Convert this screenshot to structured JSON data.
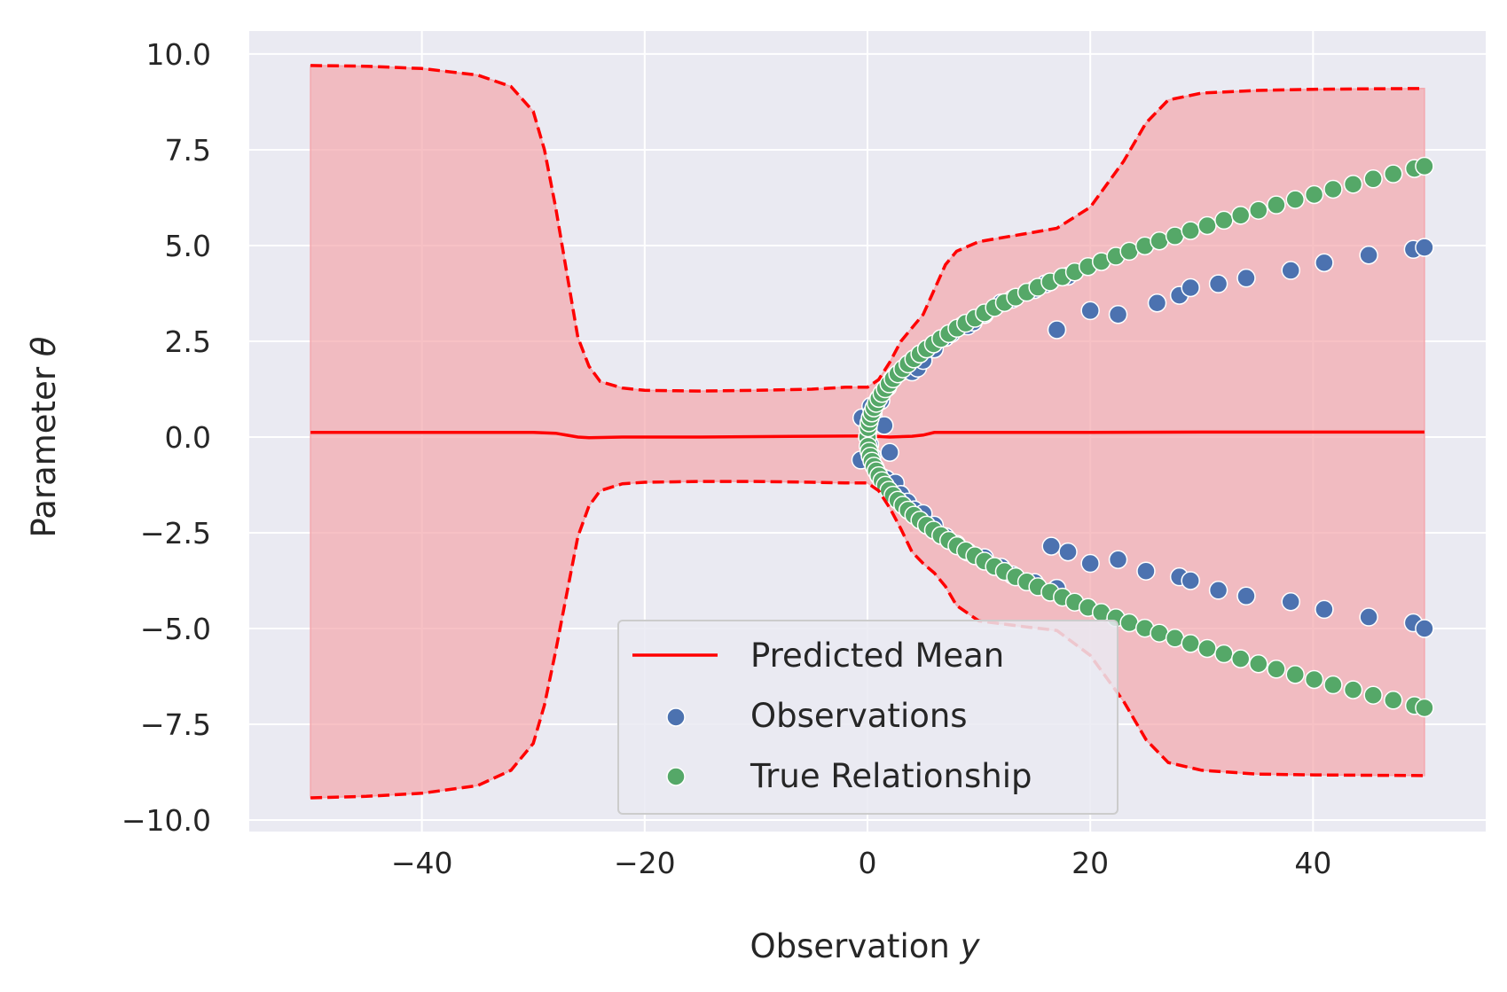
{
  "chart_data": {
    "type": "scatter",
    "title": "",
    "xlabel_main": "Observation ",
    "xlabel_var": "y",
    "ylabel_main": "Parameter ",
    "ylabel_var": "θ",
    "xlim": [
      -55.5,
      55.5
    ],
    "ylim": [
      -10.3,
      10.6
    ],
    "xticks": [
      -40,
      -20,
      0,
      20,
      40
    ],
    "xtick_labels": [
      "−40",
      "−20",
      "0",
      "20",
      "40"
    ],
    "yticks": [
      10,
      7.5,
      5,
      2.5,
      0,
      -2.5,
      -5,
      -7.5,
      -10
    ],
    "ytick_labels": [
      "10.0",
      "7.5",
      "5.0",
      "2.5",
      "0.0",
      "−2.5",
      "−5.0",
      "−7.5",
      "−10.0"
    ],
    "grid": true,
    "legend_position": "lower-center",
    "colors": {
      "background": "#eaeaf2",
      "grid": "#ffffff",
      "mean": "#ff0000",
      "band": "#f4a7ad",
      "observations": "#4c72b0",
      "true_relationship": "#55a868"
    },
    "legend": [
      {
        "label": "Predicted Mean",
        "marker": "line"
      },
      {
        "label": "Observations",
        "marker": "dot-blue"
      },
      {
        "label": "True Relationship",
        "marker": "dot-green"
      }
    ],
    "series": [
      {
        "name": "Predicted Mean",
        "kind": "line",
        "x": [
          -50,
          -40,
          -30,
          -28,
          -26,
          -25,
          -22,
          -15,
          -5,
          0,
          2,
          4,
          5,
          6,
          10,
          20,
          30,
          40,
          50
        ],
        "y": [
          0.12,
          0.12,
          0.12,
          0.1,
          0.0,
          -0.02,
          0.0,
          0.0,
          0.02,
          0.03,
          0.0,
          0.02,
          0.05,
          0.12,
          0.12,
          0.12,
          0.13,
          0.13,
          0.13
        ]
      },
      {
        "name": "Upper Bound",
        "kind": "dashed",
        "x": [
          -50,
          -45,
          -40,
          -35,
          -32,
          -30,
          -29,
          -28,
          -27,
          -26,
          -25,
          -24,
          -22,
          -20,
          -15,
          -10,
          -5,
          -2,
          0,
          1,
          2,
          3,
          4,
          5,
          6,
          7,
          8,
          10,
          14,
          17,
          20,
          23,
          25,
          27,
          30,
          35,
          40,
          45,
          50
        ],
        "y": [
          9.7,
          9.68,
          9.62,
          9.45,
          9.15,
          8.5,
          7.5,
          6.0,
          4.3,
          2.6,
          1.85,
          1.45,
          1.28,
          1.22,
          1.2,
          1.22,
          1.25,
          1.3,
          1.3,
          1.5,
          1.95,
          2.5,
          2.85,
          3.2,
          3.85,
          4.5,
          4.85,
          5.1,
          5.3,
          5.45,
          6.0,
          7.2,
          8.2,
          8.8,
          8.98,
          9.05,
          9.08,
          9.09,
          9.1
        ]
      },
      {
        "name": "Lower Bound",
        "kind": "dashed",
        "x": [
          -50,
          -45,
          -40,
          -35,
          -32,
          -30,
          -29,
          -28,
          -27,
          -26,
          -25,
          -24,
          -22,
          -20,
          -15,
          -10,
          -5,
          -2,
          0,
          1,
          2,
          3,
          4,
          5,
          6,
          7,
          8,
          10,
          14,
          17,
          20,
          23,
          25,
          27,
          30,
          35,
          40,
          45,
          50
        ],
        "y": [
          -9.42,
          -9.38,
          -9.3,
          -9.1,
          -8.7,
          -8.0,
          -7.0,
          -5.6,
          -4.1,
          -2.6,
          -1.8,
          -1.4,
          -1.22,
          -1.18,
          -1.16,
          -1.16,
          -1.18,
          -1.2,
          -1.2,
          -1.4,
          -1.85,
          -2.4,
          -3.0,
          -3.3,
          -3.55,
          -3.9,
          -4.4,
          -4.8,
          -4.95,
          -5.05,
          -5.7,
          -6.9,
          -7.9,
          -8.5,
          -8.7,
          -8.8,
          -8.82,
          -8.83,
          -8.84
        ]
      },
      {
        "name": "Observations",
        "kind": "scatter",
        "x": [
          -0.6,
          -0.5,
          0.1,
          0.3,
          0.5,
          0.8,
          1.0,
          1.2,
          1.5,
          1.8,
          2.2,
          2.5,
          3.0,
          3.5,
          4.0,
          4.5,
          5.0,
          6.0,
          7.0,
          7.5,
          8.5,
          9.0,
          9.5,
          10.5,
          12.0,
          13.0,
          15.0,
          16.0,
          17.0,
          18.0,
          20.0,
          22.5,
          26.0,
          28.0,
          29.0,
          31.5,
          34.0,
          38.0,
          41.0,
          45.0,
          49.0,
          50.0,
          0.2,
          0.4,
          0.7,
          1.0,
          1.3,
          1.7,
          2.0,
          2.5,
          3.0,
          3.6,
          4.2,
          5.0,
          6.0,
          7.0,
          8.0,
          9.0,
          10.5,
          12.0,
          13.0,
          15.0,
          16.5,
          17.0,
          18.0,
          20.0,
          22.5,
          25.0,
          28.0,
          29.0,
          31.5,
          34.0,
          38.0,
          41.0,
          45.0,
          49.0,
          50.0
        ],
        "y": [
          -0.6,
          0.5,
          0.2,
          0.8,
          0.6,
          0.9,
          1.0,
          0.95,
          0.3,
          1.3,
          1.5,
          1.6,
          1.7,
          1.8,
          1.7,
          1.8,
          2.0,
          2.3,
          2.6,
          2.7,
          2.9,
          2.9,
          3.0,
          3.2,
          3.5,
          3.6,
          3.85,
          4.0,
          2.8,
          4.2,
          3.3,
          3.2,
          3.5,
          3.7,
          3.9,
          4.0,
          4.15,
          4.35,
          4.55,
          4.75,
          4.9,
          4.95,
          -0.2,
          -0.5,
          -0.8,
          -1.0,
          -1.05,
          -1.1,
          -0.4,
          -1.2,
          -1.5,
          -1.7,
          -1.9,
          -2.0,
          -2.3,
          -2.6,
          -2.8,
          -3.0,
          -3.15,
          -3.4,
          -3.6,
          -3.8,
          -2.85,
          -3.95,
          -3.0,
          -3.3,
          -3.2,
          -3.5,
          -3.65,
          -3.75,
          -4.0,
          -4.15,
          -4.3,
          -4.5,
          -4.7,
          -4.85,
          -5.0
        ]
      },
      {
        "name": "True Relationship",
        "kind": "scatter",
        "x": [
          0.0,
          0.06,
          0.14,
          0.25,
          0.4,
          0.58,
          0.78,
          1.02,
          1.3,
          1.6,
          1.93,
          2.3,
          2.72,
          3.17,
          3.64,
          4.16,
          4.71,
          5.3,
          5.93,
          6.59,
          7.3,
          8.04,
          8.82,
          9.64,
          10.5,
          11.4,
          12.3,
          13.3,
          14.3,
          15.3,
          16.4,
          17.5,
          18.6,
          19.8,
          21.0,
          22.3,
          23.5,
          24.9,
          26.2,
          27.6,
          29.0,
          30.5,
          32.0,
          33.5,
          35.1,
          36.7,
          38.4,
          40.1,
          41.8,
          43.6,
          45.4,
          47.2,
          49.1,
          50.0,
          0.06,
          0.14,
          0.25,
          0.4,
          0.58,
          0.78,
          1.02,
          1.3,
          1.6,
          1.93,
          2.3,
          2.72,
          3.17,
          3.64,
          4.16,
          4.71,
          5.3,
          5.93,
          6.59,
          7.3,
          8.04,
          8.82,
          9.64,
          10.5,
          11.4,
          12.3,
          13.3,
          14.3,
          15.3,
          16.4,
          17.5,
          18.6,
          19.8,
          21.0,
          22.3,
          23.5,
          24.9,
          26.2,
          27.6,
          29.0,
          30.5,
          32.0,
          33.5,
          35.1,
          36.7,
          38.4,
          40.1,
          41.8,
          43.6,
          45.4,
          47.2,
          49.1,
          50.0
        ],
        "y": [
          0.0,
          0.24,
          0.37,
          0.5,
          0.63,
          0.76,
          0.88,
          1.01,
          1.14,
          1.26,
          1.39,
          1.52,
          1.65,
          1.78,
          1.91,
          2.04,
          2.17,
          2.3,
          2.43,
          2.57,
          2.7,
          2.84,
          2.97,
          3.1,
          3.24,
          3.38,
          3.51,
          3.65,
          3.78,
          3.91,
          4.05,
          4.18,
          4.31,
          4.45,
          4.58,
          4.72,
          4.85,
          4.99,
          5.12,
          5.25,
          5.39,
          5.52,
          5.66,
          5.79,
          5.92,
          6.06,
          6.2,
          6.33,
          6.47,
          6.6,
          6.74,
          6.87,
          7.01,
          7.07,
          -0.24,
          -0.37,
          -0.5,
          -0.63,
          -0.76,
          -0.88,
          -1.01,
          -1.14,
          -1.26,
          -1.39,
          -1.52,
          -1.65,
          -1.78,
          -1.91,
          -2.04,
          -2.17,
          -2.3,
          -2.43,
          -2.57,
          -2.7,
          -2.84,
          -2.97,
          -3.1,
          -3.24,
          -3.38,
          -3.51,
          -3.65,
          -3.78,
          -3.91,
          -4.05,
          -4.18,
          -4.31,
          -4.45,
          -4.58,
          -4.72,
          -4.85,
          -4.99,
          -5.12,
          -5.25,
          -5.39,
          -5.52,
          -5.66,
          -5.79,
          -5.92,
          -6.06,
          -6.2,
          -6.33,
          -6.47,
          -6.6,
          -6.74,
          -6.87,
          -7.01,
          -7.07
        ]
      }
    ]
  }
}
